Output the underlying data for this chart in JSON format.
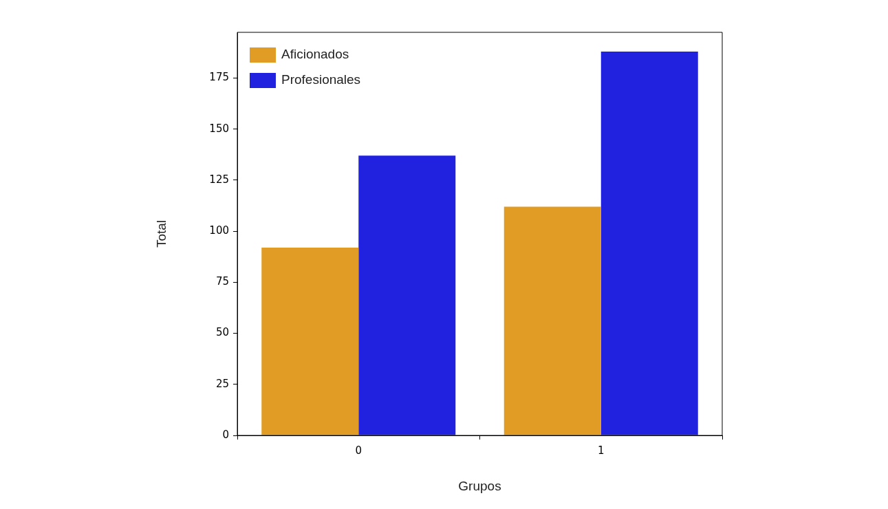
{
  "chart_data": {
    "type": "bar",
    "xlabel": "Grupos",
    "ylabel": "Total",
    "categories": [
      "0",
      "1"
    ],
    "series": [
      {
        "name": "Aficionados",
        "color": "#e09c24",
        "values": [
          92,
          112
        ]
      },
      {
        "name": "Profesionales",
        "color": "#2121e0",
        "values": [
          137,
          188
        ]
      }
    ],
    "ylim": [
      0,
      197.4
    ],
    "yticks": [
      0,
      25,
      50,
      75,
      100,
      125,
      150,
      175
    ],
    "grid": false,
    "legend": "top left"
  }
}
